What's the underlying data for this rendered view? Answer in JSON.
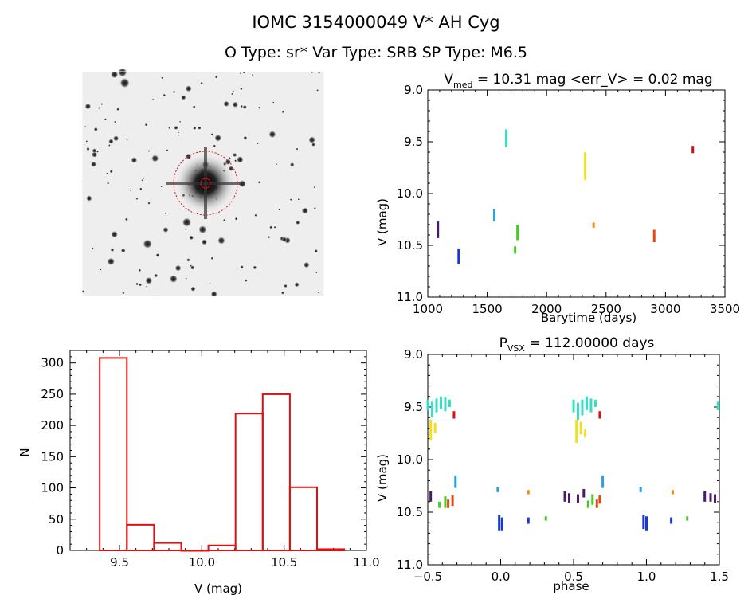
{
  "header": {
    "title": "IOMC 3154000049    V* AH Cyg",
    "subtitle": "O Type: sr*  Var Type: SRB  SP Type: M6.5"
  },
  "colors": {
    "axis": "#000000",
    "histogram": "#e01010",
    "aperture": "#e01010"
  },
  "chart_data": [
    {
      "type": "scatter",
      "name": "light-curve",
      "title_main": "V",
      "title_sub": "med",
      "title_rest": " = 10.31 mag <err_V> = 0.02 mag",
      "xlabel": "Barytime (days)",
      "ylabel": "V (mag)",
      "xlim": [
        1000,
        3500
      ],
      "ylim": [
        11.0,
        9.0
      ],
      "xticks": [
        1000,
        1500,
        2000,
        2500,
        3000,
        3500
      ],
      "yticks": [
        9.0,
        9.5,
        10.0,
        10.5,
        11.0
      ],
      "ytick_labels": [
        "9.0",
        "9.5",
        "10.0",
        "10.5",
        "11.0"
      ],
      "groups": [
        {
          "x": 1085,
          "y0": 10.27,
          "y1": 10.43,
          "color": "#4b1a6b"
        },
        {
          "x": 1260,
          "y0": 10.53,
          "y1": 10.68,
          "color": "#1a36d0"
        },
        {
          "x": 1560,
          "y0": 10.15,
          "y1": 10.27,
          "color": "#2aa0dd"
        },
        {
          "x": 1660,
          "y0": 9.38,
          "y1": 9.55,
          "color": "#35e0c2"
        },
        {
          "x": 1755,
          "y0": 10.3,
          "y1": 10.45,
          "color": "#44cc22"
        },
        {
          "x": 1735,
          "y0": 10.51,
          "y1": 10.58,
          "color": "#44cc22"
        },
        {
          "x": 2325,
          "y0": 9.6,
          "y1": 9.87,
          "color": "#f0e020"
        },
        {
          "x": 2395,
          "y0": 10.28,
          "y1": 10.33,
          "color": "#f08a10"
        },
        {
          "x": 2905,
          "y0": 10.35,
          "y1": 10.47,
          "color": "#e04a10"
        },
        {
          "x": 3230,
          "y0": 9.54,
          "y1": 9.61,
          "color": "#d01010"
        }
      ]
    },
    {
      "type": "bar",
      "name": "histogram",
      "xlabel": "V (mag)",
      "ylabel": "N",
      "xlim": [
        9.2,
        11.0
      ],
      "ylim": [
        0,
        320
      ],
      "xticks": [
        9.5,
        10.0,
        10.5,
        11.0
      ],
      "xtick_labels": [
        "9.5",
        "10.0",
        "10.5",
        "11.0"
      ],
      "yticks": [
        0,
        50,
        100,
        150,
        200,
        250,
        300
      ],
      "bin_edges": [
        9.38,
        9.545,
        9.71,
        9.875,
        10.04,
        10.205,
        10.37,
        10.535,
        10.7,
        10.865
      ],
      "values": [
        308,
        41,
        12,
        0,
        8,
        219,
        250,
        101,
        2
      ]
    },
    {
      "type": "scatter",
      "name": "phased-curve",
      "title_main": "P",
      "title_sub": "VSX",
      "title_rest": " = 112.00000 days",
      "xlabel": "phase",
      "ylabel": "V (mag)",
      "xlim": [
        -0.5,
        1.5
      ],
      "ylim": [
        11.0,
        9.0
      ],
      "xticks": [
        -0.5,
        0.0,
        0.5,
        1.0,
        1.5
      ],
      "xtick_labels": [
        "−0.5",
        "0.0",
        "0.5",
        "1.0",
        "1.5"
      ],
      "yticks": [
        9.0,
        9.5,
        10.0,
        10.5,
        11.0
      ],
      "ytick_labels": [
        "9.0",
        "9.5",
        "10.0",
        "10.5",
        "11.0"
      ],
      "groups": [
        {
          "x": -0.5,
          "y0": 9.43,
          "y1": 9.53,
          "color": "#35e0c2"
        },
        {
          "x": -0.47,
          "y0": 9.45,
          "y1": 9.6,
          "color": "#35e0c2"
        },
        {
          "x": -0.44,
          "y0": 9.42,
          "y1": 9.55,
          "color": "#35e0c2"
        },
        {
          "x": -0.41,
          "y0": 9.4,
          "y1": 9.52,
          "color": "#35e0c2"
        },
        {
          "x": -0.38,
          "y0": 9.41,
          "y1": 9.54,
          "color": "#35e0c2"
        },
        {
          "x": -0.35,
          "y0": 9.43,
          "y1": 9.5,
          "color": "#35e0c2"
        },
        {
          "x": -0.48,
          "y0": 9.62,
          "y1": 9.82,
          "color": "#f0e020"
        },
        {
          "x": -0.45,
          "y0": 9.65,
          "y1": 9.75,
          "color": "#f0e020"
        },
        {
          "x": -0.32,
          "y0": 9.54,
          "y1": 9.61,
          "color": "#d01010"
        },
        {
          "x": -0.48,
          "y0": 10.3,
          "y1": 10.4,
          "color": "#4b1a6b"
        },
        {
          "x": -0.42,
          "y0": 10.4,
          "y1": 10.46,
          "color": "#44cc22"
        },
        {
          "x": -0.38,
          "y0": 10.35,
          "y1": 10.46,
          "color": "#44cc22"
        },
        {
          "x": -0.36,
          "y0": 10.38,
          "y1": 10.46,
          "color": "#e04a10"
        },
        {
          "x": -0.33,
          "y0": 10.34,
          "y1": 10.44,
          "color": "#e04a10"
        },
        {
          "x": -0.31,
          "y0": 10.15,
          "y1": 10.27,
          "color": "#2aa0dd"
        },
        {
          "x": -0.02,
          "y0": 10.26,
          "y1": 10.31,
          "color": "#2aa0dd"
        },
        {
          "x": -0.01,
          "y0": 10.53,
          "y1": 10.68,
          "color": "#1a36d0"
        },
        {
          "x": 0.01,
          "y0": 10.55,
          "y1": 10.68,
          "color": "#1a36d0"
        },
        {
          "x": 0.19,
          "y0": 10.29,
          "y1": 10.33,
          "color": "#f08a10"
        },
        {
          "x": 0.19,
          "y0": 10.55,
          "y1": 10.61,
          "color": "#1a36d0"
        },
        {
          "x": 0.31,
          "y0": 10.54,
          "y1": 10.58,
          "color": "#44cc22"
        },
        {
          "x": 0.44,
          "y0": 10.3,
          "y1": 10.4,
          "color": "#4b1a6b"
        },
        {
          "x": 0.47,
          "y0": 10.32,
          "y1": 10.41,
          "color": "#4b1a6b"
        },
        {
          "x": 0.5,
          "y0": 9.43,
          "y1": 9.55,
          "color": "#35e0c2"
        },
        {
          "x": 0.53,
          "y0": 9.46,
          "y1": 9.62,
          "color": "#35e0c2"
        },
        {
          "x": 0.56,
          "y0": 9.43,
          "y1": 9.58,
          "color": "#35e0c2"
        },
        {
          "x": 0.59,
          "y0": 9.4,
          "y1": 9.53,
          "color": "#35e0c2"
        },
        {
          "x": 0.62,
          "y0": 9.42,
          "y1": 9.55,
          "color": "#35e0c2"
        },
        {
          "x": 0.65,
          "y0": 9.43,
          "y1": 9.5,
          "color": "#35e0c2"
        },
        {
          "x": 0.52,
          "y0": 9.62,
          "y1": 9.84,
          "color": "#f0e020"
        },
        {
          "x": 0.55,
          "y0": 9.64,
          "y1": 9.76,
          "color": "#f0e020"
        },
        {
          "x": 0.58,
          "y0": 9.71,
          "y1": 9.79,
          "color": "#f0e020"
        },
        {
          "x": 0.68,
          "y0": 9.54,
          "y1": 9.61,
          "color": "#d01010"
        },
        {
          "x": 0.53,
          "y0": 10.33,
          "y1": 10.41,
          "color": "#4b1a6b"
        },
        {
          "x": 0.57,
          "y0": 10.28,
          "y1": 10.36,
          "color": "#4b1a6b"
        },
        {
          "x": 0.6,
          "y0": 10.39,
          "y1": 10.46,
          "color": "#44cc22"
        },
        {
          "x": 0.63,
          "y0": 10.33,
          "y1": 10.43,
          "color": "#44cc22"
        },
        {
          "x": 0.66,
          "y0": 10.38,
          "y1": 10.46,
          "color": "#e04a10"
        },
        {
          "x": 0.68,
          "y0": 10.34,
          "y1": 10.42,
          "color": "#e04a10"
        },
        {
          "x": 0.7,
          "y0": 10.15,
          "y1": 10.27,
          "color": "#2aa0dd"
        },
        {
          "x": 0.96,
          "y0": 10.26,
          "y1": 10.31,
          "color": "#2aa0dd"
        },
        {
          "x": 0.98,
          "y0": 10.53,
          "y1": 10.66,
          "color": "#1a36d0"
        },
        {
          "x": 1.0,
          "y0": 10.54,
          "y1": 10.68,
          "color": "#1a36d0"
        },
        {
          "x": 1.18,
          "y0": 10.29,
          "y1": 10.33,
          "color": "#f08a10"
        },
        {
          "x": 1.17,
          "y0": 10.55,
          "y1": 10.61,
          "color": "#1a36d0"
        },
        {
          "x": 1.28,
          "y0": 10.54,
          "y1": 10.58,
          "color": "#44cc22"
        },
        {
          "x": 1.4,
          "y0": 10.3,
          "y1": 10.4,
          "color": "#4b1a6b"
        },
        {
          "x": 1.44,
          "y0": 10.32,
          "y1": 10.4,
          "color": "#4b1a6b"
        },
        {
          "x": 1.47,
          "y0": 10.33,
          "y1": 10.41,
          "color": "#4b1a6b"
        },
        {
          "x": 1.49,
          "y0": 9.45,
          "y1": 9.53,
          "color": "#35e0c2"
        }
      ]
    }
  ]
}
